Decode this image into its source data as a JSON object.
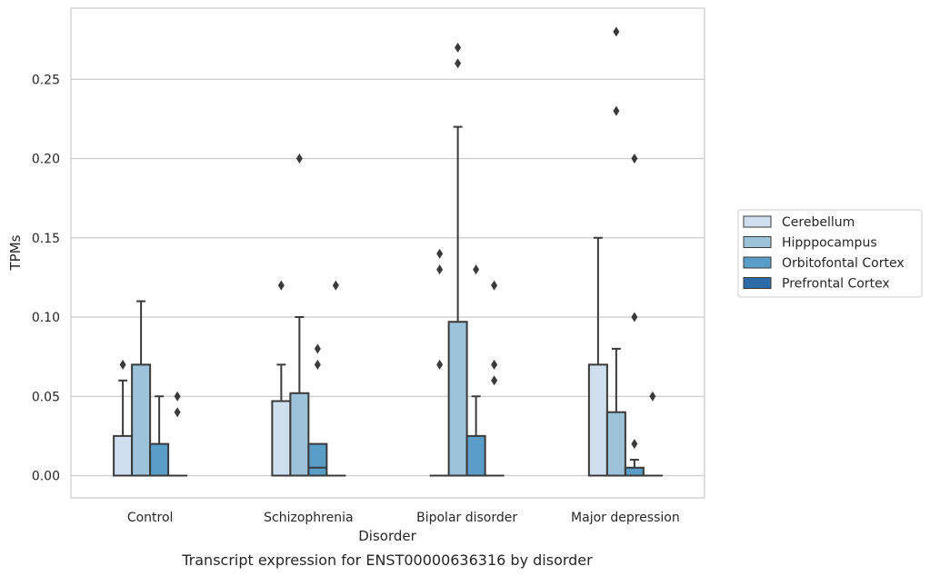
{
  "chart_data": {
    "type": "box",
    "caption": "Transcript expression for ENST00000636316 by disorder",
    "xlabel": "Disorder",
    "ylabel": "TPMs",
    "ylim": [
      -0.013,
      0.295
    ],
    "yticks": [
      0.0,
      0.05,
      0.1,
      0.15,
      0.2,
      0.25
    ],
    "ytick_labels": [
      "0.00",
      "0.05",
      "0.10",
      "0.15",
      "0.20",
      "0.25"
    ],
    "categories": [
      "Control",
      "Schizophrenia",
      "Bipolar disorder",
      "Major depression"
    ],
    "legend": {
      "placement": "right",
      "entries": [
        "Cerebellum",
        "Hipppocampus",
        "Orbitofontal Cortex",
        "Prefrontal Cortex"
      ]
    },
    "grid": "horizontal",
    "series": [
      {
        "name": "Cerebellum",
        "color": "#d0dfee",
        "boxes": [
          {
            "q1": 0.0,
            "median": 0.0,
            "q3": 0.025,
            "whisker_low": 0.0,
            "whisker_high": 0.06,
            "outliers": [
              0.07
            ]
          },
          {
            "q1": 0.0,
            "median": 0.0,
            "q3": 0.047,
            "whisker_low": 0.0,
            "whisker_high": 0.07,
            "outliers": [
              0.12
            ]
          },
          {
            "q1": 0.0,
            "median": 0.0,
            "q3": 0.0,
            "whisker_low": 0.0,
            "whisker_high": 0.0,
            "outliers": [
              0.07,
              0.13,
              0.14
            ]
          },
          {
            "q1": 0.0,
            "median": 0.0,
            "q3": 0.07,
            "whisker_low": 0.0,
            "whisker_high": 0.15,
            "outliers": []
          }
        ]
      },
      {
        "name": "Hipppocampus",
        "color": "#9cc3da",
        "boxes": [
          {
            "q1": 0.0,
            "median": 0.0,
            "q3": 0.07,
            "whisker_low": 0.0,
            "whisker_high": 0.11,
            "outliers": []
          },
          {
            "q1": 0.0,
            "median": 0.0,
            "q3": 0.052,
            "whisker_low": 0.0,
            "whisker_high": 0.1,
            "outliers": [
              0.2
            ]
          },
          {
            "q1": 0.0,
            "median": 0.0,
            "q3": 0.097,
            "whisker_low": 0.0,
            "whisker_high": 0.22,
            "outliers": [
              0.26,
              0.27
            ]
          },
          {
            "q1": 0.0,
            "median": 0.0,
            "q3": 0.04,
            "whisker_low": 0.0,
            "whisker_high": 0.08,
            "outliers": [
              0.23,
              0.28
            ]
          }
        ]
      },
      {
        "name": "Orbitofontal Cortex",
        "color": "#5a9dc8",
        "boxes": [
          {
            "q1": 0.0,
            "median": 0.0,
            "q3": 0.02,
            "whisker_low": 0.0,
            "whisker_high": 0.05,
            "outliers": []
          },
          {
            "q1": 0.0,
            "median": 0.005,
            "q3": 0.02,
            "whisker_low": 0.0,
            "whisker_high": 0.02,
            "outliers": [
              0.07,
              0.08
            ]
          },
          {
            "q1": 0.0,
            "median": 0.0,
            "q3": 0.025,
            "whisker_low": 0.0,
            "whisker_high": 0.05,
            "outliers": [
              0.13
            ]
          },
          {
            "q1": 0.0,
            "median": 0.0,
            "q3": 0.005,
            "whisker_low": 0.0,
            "whisker_high": 0.01,
            "outliers": [
              0.02,
              0.1,
              0.2
            ]
          }
        ]
      },
      {
        "name": "Prefrontal Cortex",
        "color": "#2c6aa8",
        "boxes": [
          {
            "q1": 0.0,
            "median": 0.0,
            "q3": 0.0,
            "whisker_low": 0.0,
            "whisker_high": 0.0,
            "outliers": [
              0.04,
              0.05
            ]
          },
          {
            "q1": 0.0,
            "median": 0.0,
            "q3": 0.0,
            "whisker_low": 0.0,
            "whisker_high": 0.0,
            "outliers": [
              0.12
            ]
          },
          {
            "q1": 0.0,
            "median": 0.0,
            "q3": 0.0,
            "whisker_low": 0.0,
            "whisker_high": 0.0,
            "outliers": [
              0.06,
              0.07,
              0.12
            ]
          },
          {
            "q1": 0.0,
            "median": 0.0,
            "q3": 0.0,
            "whisker_low": 0.0,
            "whisker_high": 0.0,
            "outliers": [
              0.05
            ]
          }
        ]
      }
    ]
  }
}
